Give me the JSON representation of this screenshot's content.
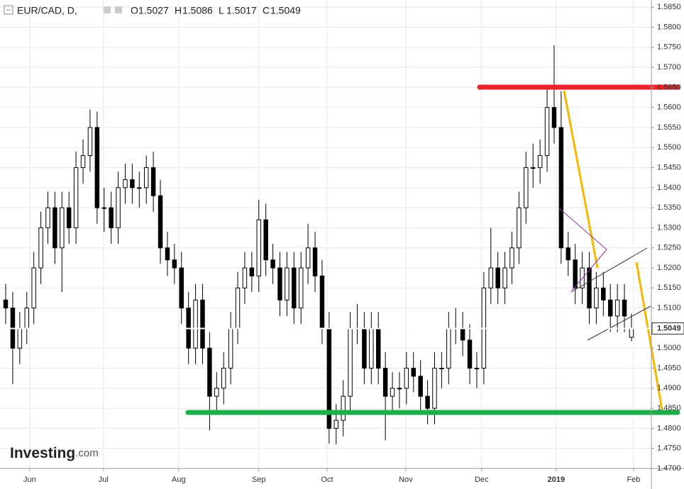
{
  "chart_data": {
    "type": "candlestick",
    "symbol": "EUR/CAD, D,",
    "ohlc_labels": [
      "O",
      "H",
      "L",
      "C"
    ],
    "watermark": [
      "Investing",
      ".com"
    ],
    "open": [
      1.512,
      1.51,
      1.5,
      1.505,
      1.51,
      1.52,
      1.53,
      1.535,
      1.525,
      1.535,
      1.53,
      1.545,
      1.548,
      1.555,
      1.535,
      1.535,
      1.53,
      1.54,
      1.542,
      1.54,
      1.54,
      1.545,
      1.538,
      1.525,
      1.522,
      1.52,
      1.51,
      1.5,
      1.512,
      1.5,
      1.488,
      1.49,
      1.495,
      1.505,
      1.515,
      1.52,
      1.518,
      1.532,
      1.522,
      1.52,
      1.512,
      1.52,
      1.51,
      1.52,
      1.525,
      1.518,
      1.505,
      1.48,
      1.482,
      1.488,
      1.505,
      1.505,
      1.495,
      1.505,
      1.495,
      1.488,
      1.49,
      1.49,
      1.495,
      1.493,
      1.488,
      1.485,
      1.495,
      1.495,
      1.505,
      1.505,
      1.502,
      1.495,
      1.495,
      1.515,
      1.52,
      1.515,
      1.52,
      1.525,
      1.535,
      1.545,
      1.545,
      1.548,
      1.56,
      1.555,
      1.525,
      1.522,
      1.515,
      1.52,
      1.51,
      1.515,
      1.512,
      1.508,
      1.512,
      1.5027
    ],
    "high": [
      1.516,
      1.514,
      1.509,
      1.514,
      1.524,
      1.534,
      1.539,
      1.539,
      1.539,
      1.539,
      1.549,
      1.552,
      1.5595,
      1.559,
      1.54,
      1.539,
      1.544,
      1.546,
      1.546,
      1.544,
      1.548,
      1.549,
      1.542,
      1.529,
      1.526,
      1.524,
      1.514,
      1.516,
      1.516,
      1.504,
      1.494,
      1.499,
      1.509,
      1.519,
      1.524,
      1.524,
      1.537,
      1.536,
      1.526,
      1.524,
      1.524,
      1.524,
      1.524,
      1.531,
      1.529,
      1.522,
      1.509,
      1.486,
      1.492,
      1.509,
      1.511,
      1.509,
      1.509,
      1.509,
      1.499,
      1.494,
      1.494,
      1.499,
      1.499,
      1.497,
      1.492,
      1.499,
      1.499,
      1.509,
      1.51,
      1.509,
      1.506,
      1.499,
      1.519,
      1.53,
      1.524,
      1.524,
      1.529,
      1.539,
      1.549,
      1.551,
      1.552,
      1.565,
      1.5755,
      1.564,
      1.529,
      1.526,
      1.524,
      1.524,
      1.519,
      1.519,
      1.516,
      1.516,
      1.516,
      1.5086
    ],
    "low": [
      1.506,
      1.491,
      1.496,
      1.501,
      1.506,
      1.516,
      1.526,
      1.521,
      1.514,
      1.526,
      1.526,
      1.541,
      1.544,
      1.531,
      1.529,
      1.526,
      1.526,
      1.536,
      1.536,
      1.535,
      1.536,
      1.534,
      1.521,
      1.518,
      1.516,
      1.506,
      1.496,
      1.496,
      1.496,
      1.4795,
      1.484,
      1.486,
      1.491,
      1.501,
      1.511,
      1.514,
      1.514,
      1.518,
      1.516,
      1.508,
      1.508,
      1.506,
      1.506,
      1.516,
      1.514,
      1.501,
      1.4762,
      1.476,
      1.478,
      1.484,
      1.501,
      1.491,
      1.491,
      1.491,
      1.477,
      1.484,
      1.485,
      1.486,
      1.489,
      1.484,
      1.481,
      1.481,
      1.49,
      1.491,
      1.501,
      1.498,
      1.491,
      1.49,
      1.491,
      1.511,
      1.511,
      1.511,
      1.516,
      1.521,
      1.531,
      1.54,
      1.541,
      1.544,
      1.551,
      1.521,
      1.518,
      1.511,
      1.511,
      1.506,
      1.506,
      1.508,
      1.504,
      1.504,
      1.504,
      1.5017
    ],
    "close": [
      1.51,
      1.5,
      1.505,
      1.51,
      1.52,
      1.53,
      1.535,
      1.525,
      1.535,
      1.53,
      1.545,
      1.548,
      1.555,
      1.535,
      1.535,
      1.53,
      1.54,
      1.542,
      1.54,
      1.54,
      1.545,
      1.538,
      1.525,
      1.522,
      1.52,
      1.51,
      1.5,
      1.512,
      1.5,
      1.488,
      1.49,
      1.495,
      1.505,
      1.515,
      1.52,
      1.518,
      1.532,
      1.522,
      1.52,
      1.512,
      1.52,
      1.51,
      1.52,
      1.525,
      1.518,
      1.505,
      1.48,
      1.482,
      1.488,
      1.505,
      1.505,
      1.495,
      1.505,
      1.495,
      1.488,
      1.49,
      1.49,
      1.495,
      1.493,
      1.488,
      1.485,
      1.495,
      1.495,
      1.505,
      1.505,
      1.502,
      1.495,
      1.495,
      1.515,
      1.52,
      1.515,
      1.52,
      1.525,
      1.535,
      1.545,
      1.545,
      1.548,
      1.56,
      1.555,
      1.525,
      1.522,
      1.515,
      1.52,
      1.51,
      1.515,
      1.512,
      1.508,
      1.512,
      1.508,
      1.5049
    ],
    "colors": {
      "up": "#ffffff",
      "down": "#000000",
      "outline": "#000000"
    },
    "xlim": [
      -0.81,
      91.83
    ],
    "xticks": [
      {
        "value": 3.4,
        "label": "Jun"
      },
      {
        "value": 13.9,
        "label": "Jul"
      },
      {
        "value": 24.6,
        "label": "Aug"
      },
      {
        "value": 36.0,
        "label": "Sep"
      },
      {
        "value": 45.7,
        "label": "Oct"
      },
      {
        "value": 56.9,
        "label": "Nov"
      },
      {
        "value": 67.7,
        "label": "Dec"
      },
      {
        "value": 78.3,
        "label": "2019"
      },
      {
        "value": 89.3,
        "label": "Feb"
      }
    ],
    "ylim": [
      1.47,
      1.5868
    ],
    "yticks": [
      {
        "value": 1.585,
        "label": "1.5850"
      },
      {
        "value": 1.58,
        "label": "1.5800"
      },
      {
        "value": 1.575,
        "label": "1.5750"
      },
      {
        "value": 1.57,
        "label": "1.5700"
      },
      {
        "value": 1.565,
        "label": "1.5650"
      },
      {
        "value": 1.56,
        "label": "1.5600"
      },
      {
        "value": 1.555,
        "label": "1.5550"
      },
      {
        "value": 1.55,
        "label": "1.5500"
      },
      {
        "value": 1.545,
        "label": "1.5450"
      },
      {
        "value": 1.54,
        "label": "1.5400"
      },
      {
        "value": 1.535,
        "label": "1.5350"
      },
      {
        "value": 1.53,
        "label": "1.5300"
      },
      {
        "value": 1.525,
        "label": "1.5250"
      },
      {
        "value": 1.52,
        "label": "1.5200"
      },
      {
        "value": 1.515,
        "label": "1.5150"
      },
      {
        "value": 1.51,
        "label": "1.5100"
      },
      {
        "value": 1.505,
        "label": "1.5050"
      },
      {
        "value": 1.5,
        "label": "1.5000"
      },
      {
        "value": 1.495,
        "label": "1.4950"
      },
      {
        "value": 1.49,
        "label": "1.4900"
      },
      {
        "value": 1.485,
        "label": "1.4850"
      },
      {
        "value": 1.48,
        "label": "1.4800"
      },
      {
        "value": 1.475,
        "label": "1.4750"
      },
      {
        "value": 1.47,
        "label": "1.4700"
      }
    ],
    "grid": true
  }
}
